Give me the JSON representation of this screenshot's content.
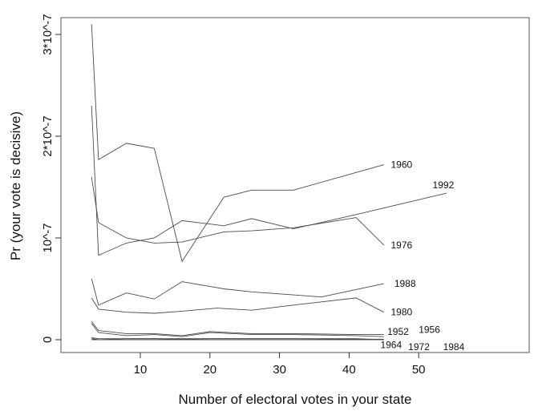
{
  "chart_data": {
    "type": "line",
    "title": "",
    "xlabel": "Number of electoral votes in your state",
    "ylabel": "Pr (your vote is decisive)",
    "xlim": [
      2,
      56
    ],
    "ylim": [
      -1e-08,
      3.05e-07
    ],
    "x_ticks": [
      {
        "value": 10,
        "label": "10"
      },
      {
        "value": 20,
        "label": "20"
      },
      {
        "value": 30,
        "label": "30"
      },
      {
        "value": 40,
        "label": "40"
      },
      {
        "value": 50,
        "label": "50"
      }
    ],
    "y_ticks": [
      {
        "value": 0,
        "label": "0"
      },
      {
        "value": 1e-07,
        "label": "10^-7"
      },
      {
        "value": 2e-07,
        "label": "2*10^-7"
      },
      {
        "value": 3e-07,
        "label": "3*10^-7"
      }
    ],
    "grid": false,
    "series": [
      {
        "name": "1960",
        "x": [
          3,
          4,
          8,
          12,
          16,
          22,
          26,
          32,
          45
        ],
        "y": [
          3.1e-07,
          1.77e-07,
          1.93e-07,
          1.88e-07,
          7.7e-08,
          1.4e-07,
          1.47e-07,
          1.47e-07,
          1.72e-07
        ]
      },
      {
        "name": "1992",
        "x": [
          3,
          4,
          8,
          12,
          16,
          22,
          26,
          32,
          41,
          54
        ],
        "y": [
          2.3e-07,
          8.3e-08,
          9.5e-08,
          1e-07,
          1.17e-07,
          1.12e-07,
          1.19e-07,
          1.09e-07,
          1.23e-07,
          1.44e-07
        ]
      },
      {
        "name": "1976",
        "x": [
          3,
          4,
          8,
          12,
          16,
          22,
          26,
          32,
          41,
          45
        ],
        "y": [
          1.6e-07,
          1.15e-07,
          1e-07,
          9.5e-08,
          9.6e-08,
          1.06e-07,
          1.07e-07,
          1.1e-07,
          1.2e-07,
          9.3e-08
        ]
      },
      {
        "name": "1988",
        "x": [
          3,
          4,
          8,
          12,
          16,
          22,
          26,
          32,
          36,
          45
        ],
        "y": [
          6e-08,
          3.4e-08,
          4.6e-08,
          4e-08,
          5.7e-08,
          5e-08,
          4.7e-08,
          4.4e-08,
          4.2e-08,
          5.5e-08
        ]
      },
      {
        "name": "1980",
        "x": [
          3,
          4,
          8,
          12,
          16,
          21,
          26,
          32,
          41,
          45
        ],
        "y": [
          4.1e-08,
          3e-08,
          2.7e-08,
          2.6e-08,
          2.8e-08,
          3.1e-08,
          2.9e-08,
          3.4e-08,
          4.1e-08,
          2.7e-08
        ]
      },
      {
        "name": "1952",
        "x": [
          3,
          4,
          8,
          12,
          16,
          20,
          26,
          32,
          41,
          45
        ],
        "y": [
          1.8e-08,
          9e-09,
          6e-09,
          6e-09,
          4e-09,
          8e-09,
          6e-09,
          6e-09,
          5e-09,
          5e-09
        ]
      },
      {
        "name": "1956",
        "x": [
          3,
          4,
          8,
          12,
          16,
          20,
          26,
          32,
          41,
          45
        ],
        "y": [
          1.6e-08,
          7e-09,
          4e-09,
          5e-09,
          3e-09,
          7e-09,
          5e-09,
          5e-09,
          4e-09,
          3e-09
        ]
      },
      {
        "name": "1964",
        "x": [
          3,
          4,
          8,
          12,
          16,
          20,
          26,
          32,
          41,
          45
        ],
        "y": [
          1e-09,
          0.0,
          1e-09,
          1e-09,
          1e-09,
          1e-09,
          1e-09,
          1e-09,
          1e-09,
          0.0
        ]
      },
      {
        "name": "1972",
        "x": [
          3,
          4,
          8,
          12,
          16,
          20,
          26,
          32,
          41,
          45
        ],
        "y": [
          0.0,
          0.0,
          0.0,
          0.0,
          0.0,
          0.0,
          0.0,
          0.0,
          0.0,
          0.0
        ]
      },
      {
        "name": "1984",
        "x": [
          3,
          4,
          8,
          12,
          16,
          20,
          26,
          32,
          41,
          45
        ],
        "y": [
          2e-09,
          1e-09,
          1e-09,
          1e-09,
          5e-10,
          1e-09,
          1e-09,
          1e-09,
          5e-10,
          5e-10
        ]
      }
    ],
    "series_labels": [
      {
        "name": "1960",
        "x": 46,
        "y": 1.72e-07
      },
      {
        "name": "1992",
        "x": 52,
        "y": 1.52e-07
      },
      {
        "name": "1976",
        "x": 46,
        "y": 9.3e-08
      },
      {
        "name": "1988",
        "x": 46.5,
        "y": 5.5e-08
      },
      {
        "name": "1980",
        "x": 46,
        "y": 2.7e-08
      },
      {
        "name": "1952",
        "x": 45.5,
        "y": 8e-09
      },
      {
        "name": "1956",
        "x": 50,
        "y": 1e-08
      },
      {
        "name": "1964",
        "x": 44.5,
        "y": -5e-09
      },
      {
        "name": "1972",
        "x": 48.5,
        "y": -7e-09
      },
      {
        "name": "1984",
        "x": 53.5,
        "y": -7e-09
      }
    ]
  }
}
